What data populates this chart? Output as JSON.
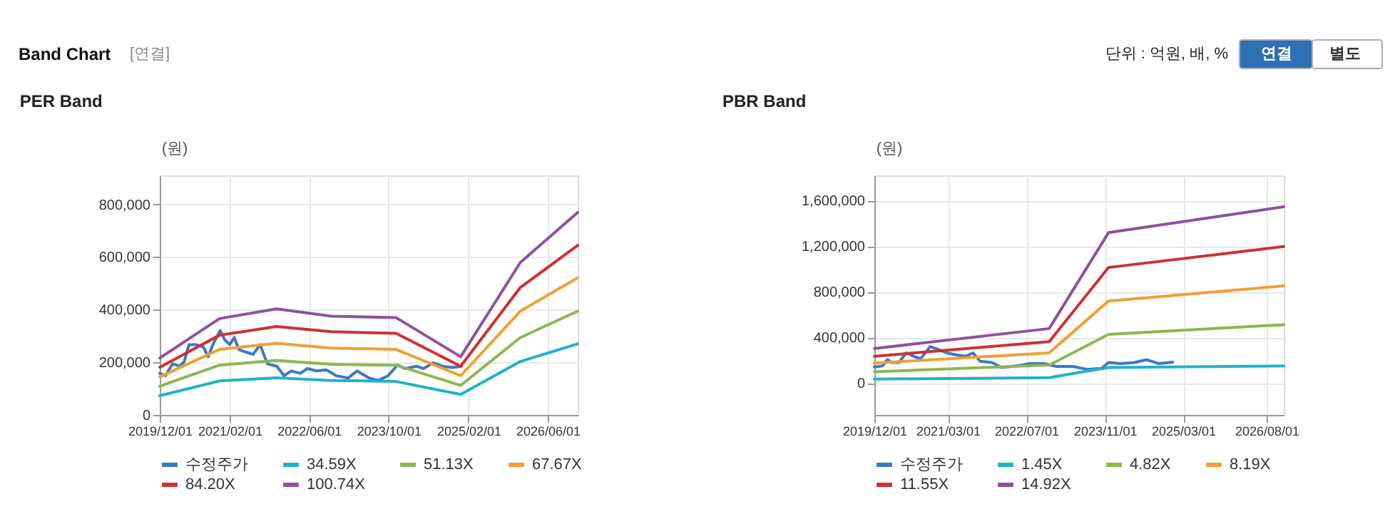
{
  "chart_data": [
    {
      "type": "line",
      "title": "PER Band",
      "ylabel": "(원)",
      "annotations": [
        "Band Chart",
        "[연결]",
        "단위 : 억원, 배, %",
        "연결",
        "별도"
      ],
      "xlim": [
        "2019-12-01",
        "2026-12-01"
      ],
      "xticks": [
        {
          "value": "2019-12-01",
          "label": "2019/12/01"
        },
        {
          "value": "2021-02-01",
          "label": "2021/02/01"
        },
        {
          "value": "2022-06-01",
          "label": "2022/06/01"
        },
        {
          "value": "2023-10-01",
          "label": "2023/10/01"
        },
        {
          "value": "2025-02-01",
          "label": "2025/02/01"
        },
        {
          "value": "2026-06-01",
          "label": "2026/06/01"
        }
      ],
      "ylim": [
        0,
        910000
      ],
      "yticks": [
        0,
        {
          "value": 200000,
          "label": "200,000"
        },
        {
          "value": 400000,
          "label": "400,000"
        },
        {
          "value": 600000,
          "label": "600,000"
        },
        {
          "value": 800000,
          "label": "800,000"
        }
      ],
      "grid": true,
      "legend": "bottom",
      "series": [
        {
          "name": "수정주가",
          "color": "#3c78c8",
          "x": [
            "2019-12-01",
            "2020-01-05",
            "2020-02-17",
            "2020-04-01",
            "2020-04-29",
            "2020-05-28",
            "2020-07-10",
            "2020-08-24",
            "2020-09-22",
            "2020-10-21",
            "2020-12-04",
            "2021-01-02",
            "2021-02-01",
            "2021-03-01",
            "2021-03-28",
            "2021-05-10",
            "2021-06-24",
            "2021-08-06",
            "2021-09-19",
            "2021-11-16",
            "2021-12-30",
            "2022-02-12",
            "2022-04-09",
            "2022-05-22",
            "2022-07-20",
            "2022-09-16",
            "2022-11-14",
            "2023-01-25",
            "2023-03-22",
            "2023-06-04",
            "2023-08-01",
            "2023-09-28",
            "2023-11-25",
            "2024-01-08",
            "2024-03-20",
            "2024-05-02",
            "2024-06-30",
            "2024-08-27",
            "2024-10-24",
            "2024-12-21"
          ],
          "values": [
            158000,
            149000,
            194000,
            185000,
            203000,
            267000,
            267000,
            258000,
            221000,
            267000,
            321000,
            285000,
            267000,
            294000,
            249000,
            239000,
            230000,
            267000,
            194000,
            185000,
            149000,
            167000,
            158000,
            176000,
            167000,
            171000,
            149000,
            140000,
            167000,
            140000,
            131000,
            149000,
            190000,
            176000,
            185000,
            176000,
            198000,
            185000,
            180000,
            185000
          ]
        },
        {
          "name": "34.59X",
          "color": "#20b3c8",
          "x": [
            "2019-12-01",
            "2020-12-01",
            "2021-11-15",
            "2022-10-15",
            "2023-11-15",
            "2024-12-15",
            "2025-12-15",
            "2026-12-01"
          ],
          "values": [
            73000,
            129000,
            141000,
            131000,
            127000,
            78000,
            203000,
            270000
          ]
        },
        {
          "name": "51.13X",
          "color": "#8cb850",
          "x": [
            "2019-12-01",
            "2020-12-01",
            "2021-11-15",
            "2022-10-15",
            "2023-11-15",
            "2024-12-15",
            "2025-12-15",
            "2026-12-01"
          ],
          "values": [
            109000,
            189000,
            207000,
            192000,
            189000,
            112000,
            294000,
            394000
          ]
        },
        {
          "name": "67.67X",
          "color": "#f0a030",
          "x": [
            "2019-12-01",
            "2020-12-01",
            "2021-11-15",
            "2022-10-15",
            "2023-11-15",
            "2024-12-15",
            "2025-12-15",
            "2026-12-01"
          ],
          "values": [
            145000,
            249000,
            272000,
            254000,
            249000,
            149000,
            394000,
            521000
          ]
        },
        {
          "name": "84.20X",
          "color": "#d03030",
          "x": [
            "2019-12-01",
            "2020-12-01",
            "2021-11-15",
            "2022-10-15",
            "2023-11-15",
            "2024-12-15",
            "2025-12-15",
            "2026-12-01"
          ],
          "values": [
            181000,
            303000,
            336000,
            316000,
            310000,
            185000,
            484000,
            644000
          ]
        },
        {
          "name": "100.74X",
          "color": "#9050a0",
          "x": [
            "2019-12-01",
            "2020-12-01",
            "2021-11-15",
            "2022-10-15",
            "2023-11-15",
            "2024-12-15",
            "2025-12-15",
            "2026-12-01"
          ],
          "values": [
            216000,
            366000,
            403000,
            375000,
            370000,
            221000,
            579000,
            769000
          ]
        }
      ]
    },
    {
      "type": "line",
      "title": "PBR Band",
      "ylabel": "(원)",
      "xlim": [
        "2019-12-01",
        "2026-11-15"
      ],
      "xticks": [
        {
          "value": "2019-12-01",
          "label": "2019/12/01"
        },
        {
          "value": "2021-03-01",
          "label": "2021/03/01"
        },
        {
          "value": "2022-07-01",
          "label": "2022/07/01"
        },
        {
          "value": "2023-11-01",
          "label": "2023/11/01"
        },
        {
          "value": "2025-03-01",
          "label": "2025/03/01"
        },
        {
          "value": "2026-08-01",
          "label": "2026/08/01"
        }
      ],
      "ylim": [
        -280000,
        1820000
      ],
      "yticks": [
        0,
        {
          "value": 400000,
          "label": "400,000"
        },
        {
          "value": 800000,
          "label": "800,000"
        },
        {
          "value": 1200000,
          "label": "1,200,000"
        },
        {
          "value": 1600000,
          "label": "1,600,000"
        }
      ],
      "grid": true,
      "legend": "bottom",
      "series": [
        {
          "name": "수정주가",
          "color": "#3c78c8",
          "x": [
            "2019-12-01",
            "2020-01-20",
            "2020-02-19",
            "2020-03-18",
            "2020-05-02",
            "2020-06-16",
            "2020-07-30",
            "2020-09-13",
            "2020-11-11",
            "2020-12-25",
            "2021-02-23",
            "2021-04-22",
            "2021-06-20",
            "2021-08-04",
            "2021-09-17",
            "2021-11-30",
            "2022-01-28",
            "2022-04-26",
            "2022-07-24",
            "2022-10-21",
            "2023-01-03",
            "2023-04-16",
            "2023-07-13",
            "2023-10-10",
            "2023-11-24",
            "2024-02-07",
            "2024-05-04",
            "2024-07-17",
            "2024-09-30",
            "2024-12-27"
          ],
          "values": [
            140000,
            149000,
            204000,
            179000,
            179000,
            264000,
            234000,
            213000,
            319000,
            298000,
            264000,
            247000,
            234000,
            264000,
            191000,
            179000,
            136000,
            149000,
            170000,
            170000,
            145000,
            145000,
            119000,
            128000,
            179000,
            170000,
            179000,
            204000,
            170000,
            183000
          ]
        },
        {
          "name": "1.45X",
          "color": "#20b3c8",
          "x": [
            "2019-12-01",
            "2022-11-20",
            "2023-11-24",
            "2026-11-15"
          ],
          "values": [
            34000,
            47000,
            136000,
            149000
          ]
        },
        {
          "name": "4.82X",
          "color": "#8cb850",
          "x": [
            "2019-12-01",
            "2022-11-20",
            "2023-11-24",
            "2026-11-15"
          ],
          "values": [
            98000,
            157000,
            426000,
            511000
          ]
        },
        {
          "name": "8.19X",
          "color": "#f0a030",
          "x": [
            "2019-12-01",
            "2022-11-20",
            "2023-11-24",
            "2026-11-15"
          ],
          "values": [
            174000,
            264000,
            719000,
            851000
          ]
        },
        {
          "name": "11.55X",
          "color": "#d03030",
          "x": [
            "2019-12-01",
            "2022-11-20",
            "2023-11-24",
            "2026-11-15"
          ],
          "values": [
            234000,
            362000,
            1013000,
            1196000
          ]
        },
        {
          "name": "14.92X",
          "color": "#9050a0",
          "x": [
            "2019-12-01",
            "2022-11-20",
            "2023-11-24",
            "2026-11-15"
          ],
          "values": [
            302000,
            477000,
            1319000,
            1545000
          ]
        }
      ]
    }
  ]
}
